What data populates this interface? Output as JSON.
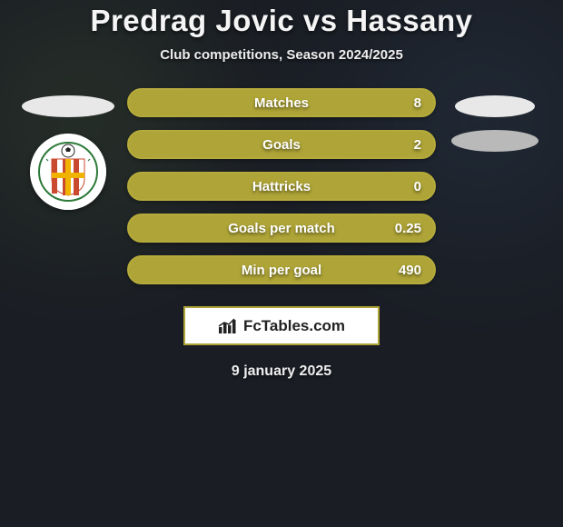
{
  "title": "Predrag Jovic vs Hassany",
  "subtitle": "Club competitions, Season 2024/2025",
  "date": "9 january 2025",
  "logo_text": "FcTables.com",
  "accent_color": "#aea437",
  "accent_border": "#b5ab3c",
  "logo_border": "#aea437",
  "background_color": "#1a1d24",
  "stats": [
    {
      "label": "Matches",
      "value": "8"
    },
    {
      "label": "Goals",
      "value": "2"
    },
    {
      "label": "Hattricks",
      "value": "0"
    },
    {
      "label": "Goals per match",
      "value": "0.25"
    },
    {
      "label": "Min per goal",
      "value": "490"
    }
  ],
  "badge": {
    "stripe_color": "#c94a2f",
    "cross_color": "#f0b400",
    "text_color": "#2d7a3a"
  },
  "ellipses": {
    "left_color": "#e8e8e8",
    "right_top_color": "#e8e8e8",
    "right_bottom_color": "#b9b9b9"
  }
}
